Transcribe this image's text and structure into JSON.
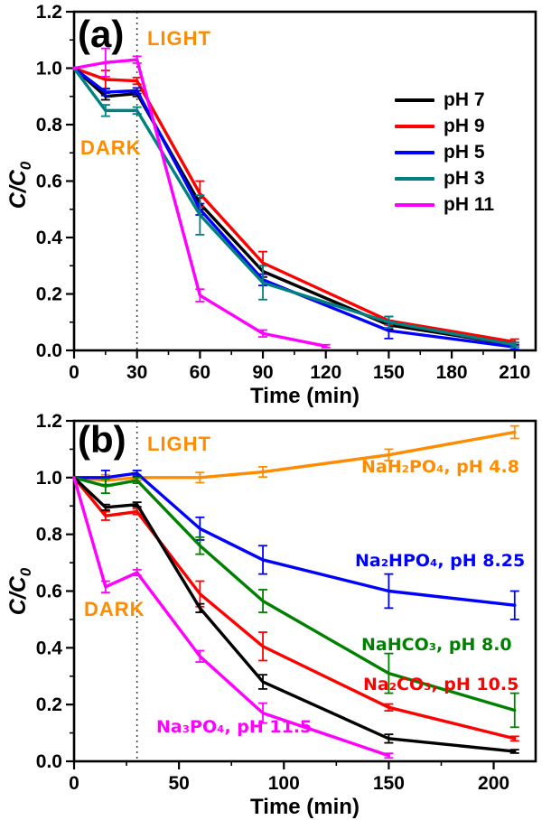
{
  "figure": {
    "description_labels": {
      "time_axis": "Time (min)"
    }
  },
  "chart_data": [
    {
      "type": "line",
      "panel_tag": "(a)",
      "xlabel": "Time (min)",
      "ylabel_main": "C/C",
      "ylabel_sub": "0",
      "xlim": [
        0,
        220
      ],
      "ylim": [
        0,
        1.2
      ],
      "x_ticks": [
        0,
        30,
        60,
        90,
        120,
        150,
        180,
        210
      ],
      "y_ticks": [
        0,
        0.2,
        0.4,
        0.6,
        0.8,
        1.0,
        1.2
      ],
      "x_minor_step": 15,
      "y_minor_step": 0.1,
      "grid": false,
      "boundary_x": 30,
      "annotations": {
        "light": "LIGHT",
        "dark": "DARK",
        "color": "#FF8C00"
      },
      "legend_position": "center-right-inside",
      "series": [
        {
          "id": "ph-7",
          "name": "pH 7",
          "color": "#000000",
          "x": [
            0,
            15,
            30,
            60,
            90,
            150,
            210
          ],
          "y": [
            1.0,
            0.9,
            0.91,
            0.52,
            0.28,
            0.09,
            0.02
          ],
          "err": [
            0,
            0.012,
            0.01,
            0.02,
            0.02,
            0.015,
            0.008
          ]
        },
        {
          "id": "ph-9",
          "name": "pH 9",
          "color": "#FF0000",
          "x": [
            0,
            15,
            30,
            60,
            90,
            150,
            210
          ],
          "y": [
            1.0,
            0.96,
            0.955,
            0.555,
            0.31,
            0.105,
            0.03
          ],
          "err": [
            0,
            0.032,
            0.012,
            0.045,
            0.04,
            0.015,
            0.01
          ]
        },
        {
          "id": "ph-5",
          "name": "pH 5",
          "color": "#0000FF",
          "x": [
            0,
            15,
            30,
            60,
            90,
            150,
            210
          ],
          "y": [
            1.0,
            0.915,
            0.92,
            0.5,
            0.25,
            0.07,
            0.012
          ],
          "err": [
            0,
            0.012,
            0.01,
            0.02,
            0.02,
            0.028,
            0.008
          ]
        },
        {
          "id": "ph-3",
          "name": "pH 3",
          "color": "#008080",
          "x": [
            0,
            15,
            30,
            60,
            90,
            150,
            210
          ],
          "y": [
            1.0,
            0.85,
            0.85,
            0.48,
            0.24,
            0.1,
            0.02
          ],
          "err": [
            0,
            0.02,
            0.012,
            0.07,
            0.06,
            0.02,
            0.008
          ]
        },
        {
          "id": "ph-11",
          "name": "pH 11",
          "color": "#FF00FF",
          "x": [
            0,
            15,
            30,
            60,
            90,
            120
          ],
          "y": [
            1.0,
            1.02,
            1.03,
            0.195,
            0.06,
            0.015
          ],
          "err": [
            0,
            0.05,
            0.012,
            0.022,
            0.012,
            0.005
          ]
        }
      ]
    },
    {
      "type": "line",
      "panel_tag": "(b)",
      "xlabel": "Time (min)",
      "ylabel_main": "C/C",
      "ylabel_sub": "0",
      "xlim": [
        0,
        220
      ],
      "ylim": [
        0,
        1.2
      ],
      "x_ticks": [
        0,
        50,
        100,
        150,
        200
      ],
      "y_ticks": [
        0,
        0.2,
        0.4,
        0.6,
        0.8,
        1.0,
        1.2
      ],
      "x_minor_step": 25,
      "y_minor_step": 0.1,
      "grid": false,
      "boundary_x": 30,
      "annotations": {
        "light": "LIGHT",
        "dark": "DARK",
        "color": "#FF8C00"
      },
      "legend_position": "labels-on-curves",
      "series": [
        {
          "id": "nah2po4",
          "label": "NaH₂PO₄, pH 4.8",
          "color": "#FF8C00",
          "x": [
            0,
            15,
            30,
            60,
            90,
            150,
            210
          ],
          "y": [
            1.0,
            0.99,
            1.0,
            1.0,
            1.02,
            1.08,
            1.16
          ],
          "err": [
            0,
            0.02,
            0.01,
            0.018,
            0.018,
            0.02,
            0.022
          ]
        },
        {
          "id": "na2hpo4",
          "label": "Na₂HPO₄, pH 8.25",
          "color": "#0000FF",
          "x": [
            0,
            15,
            30,
            60,
            90,
            150,
            210
          ],
          "y": [
            1.0,
            1.0,
            1.015,
            0.82,
            0.71,
            0.6,
            0.55
          ],
          "err": [
            0,
            0.025,
            0.01,
            0.04,
            0.05,
            0.06,
            0.05
          ]
        },
        {
          "id": "nahco3",
          "label": "NaHCO₃, pH 8.0",
          "color": "#008000",
          "x": [
            0,
            15,
            30,
            60,
            90,
            150,
            210
          ],
          "y": [
            1.0,
            0.97,
            0.99,
            0.76,
            0.565,
            0.31,
            0.18
          ],
          "err": [
            0,
            0.025,
            0.01,
            0.03,
            0.04,
            0.07,
            0.06
          ]
        },
        {
          "id": "na2co3",
          "label": "Na₂CO₃, pH 10.5",
          "color": "#FF0000",
          "x": [
            0,
            15,
            30,
            60,
            90,
            150,
            210
          ],
          "y": [
            1.0,
            0.865,
            0.88,
            0.59,
            0.405,
            0.19,
            0.08
          ],
          "err": [
            0,
            0.015,
            0.01,
            0.045,
            0.05,
            0.012,
            0.008
          ]
        },
        {
          "id": "unlabeled-black",
          "label": "",
          "color": "#000000",
          "x": [
            0,
            15,
            30,
            60,
            90,
            150,
            210
          ],
          "y": [
            1.0,
            0.895,
            0.905,
            0.54,
            0.28,
            0.08,
            0.035
          ],
          "err": [
            0,
            0.01,
            0.008,
            0.015,
            0.025,
            0.015,
            0.006
          ]
        },
        {
          "id": "na3po4",
          "label": "Na₃PO₄, pH 11.5",
          "color": "#FF00FF",
          "x": [
            0,
            15,
            30,
            60,
            90,
            150
          ],
          "y": [
            1.0,
            0.615,
            0.665,
            0.37,
            0.17,
            0.02
          ],
          "err": [
            0,
            0.02,
            0.01,
            0.02,
            0.035,
            0.008
          ]
        }
      ]
    }
  ]
}
